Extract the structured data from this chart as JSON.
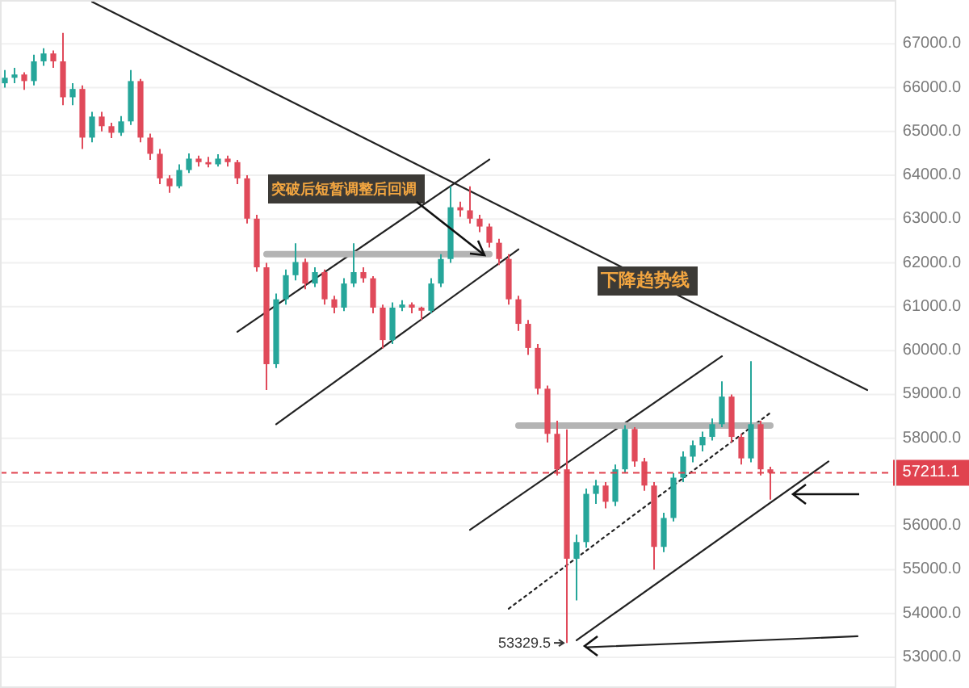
{
  "chart_data": {
    "type": "candlestick",
    "categories": [
      null,
      null,
      null,
      null,
      null,
      null,
      null,
      null,
      null,
      null,
      null,
      null,
      null,
      null,
      null,
      null,
      null,
      null,
      null,
      null,
      null,
      null,
      null,
      null,
      null,
      null,
      null,
      null,
      null,
      null,
      null,
      null,
      null,
      null,
      null,
      null,
      null,
      null,
      null,
      null,
      null,
      null,
      null,
      null,
      null,
      null,
      null,
      null,
      null,
      null,
      null,
      null,
      null,
      null,
      null,
      null,
      null,
      null,
      null,
      null,
      null,
      null,
      null,
      null,
      null,
      null,
      null,
      null,
      null,
      null,
      null,
      null,
      null,
      null,
      null,
      null,
      null,
      null,
      null,
      null,
      null,
      null,
      null,
      null,
      null,
      null,
      null,
      null,
      null,
      null,
      null
    ],
    "ohlc": [
      [
        66100,
        66400,
        66000,
        66225
      ],
      [
        66225,
        66450,
        66100,
        66300
      ],
      [
        66300,
        66350,
        65950,
        66150
      ],
      [
        66150,
        66750,
        66050,
        66600
      ],
      [
        66600,
        66900,
        66500,
        66780
      ],
      [
        66780,
        66850,
        66450,
        66600
      ],
      [
        66600,
        67250,
        65600,
        65780
      ],
      [
        65780,
        66100,
        65600,
        65970
      ],
      [
        65970,
        66050,
        64600,
        64860
      ],
      [
        64860,
        65450,
        64750,
        65340
      ],
      [
        65340,
        65450,
        65000,
        65120
      ],
      [
        65120,
        65200,
        64850,
        64970
      ],
      [
        64970,
        65350,
        64900,
        65230
      ],
      [
        65230,
        66400,
        65150,
        66150
      ],
      [
        66150,
        66200,
        64750,
        64860
      ],
      [
        64860,
        64950,
        64350,
        64490
      ],
      [
        64490,
        64600,
        63800,
        63930
      ],
      [
        63930,
        64000,
        63600,
        63750
      ],
      [
        63750,
        64250,
        63700,
        64120
      ],
      [
        64120,
        64500,
        64050,
        64380
      ],
      [
        64380,
        64450,
        64200,
        64300
      ],
      [
        64300,
        64420,
        64180,
        64250
      ],
      [
        64250,
        64480,
        64200,
        64380
      ],
      [
        64380,
        64450,
        64200,
        64300
      ],
      [
        64300,
        64350,
        63800,
        63930
      ],
      [
        63930,
        64000,
        62900,
        63010
      ],
      [
        63010,
        63100,
        61800,
        61900
      ],
      [
        61900,
        62000,
        59100,
        59690
      ],
      [
        59690,
        61300,
        59600,
        61170
      ],
      [
        61170,
        61850,
        61050,
        61720
      ],
      [
        61720,
        62450,
        61600,
        62020
      ],
      [
        62020,
        62100,
        61400,
        61530
      ],
      [
        61530,
        61900,
        61450,
        61790
      ],
      [
        61790,
        61850,
        61050,
        61170
      ],
      [
        61170,
        61250,
        60850,
        60980
      ],
      [
        60980,
        61650,
        60900,
        61530
      ],
      [
        61530,
        62450,
        61450,
        61790
      ],
      [
        61790,
        61900,
        61550,
        61650
      ],
      [
        61650,
        61700,
        60850,
        60980
      ],
      [
        60980,
        61050,
        60050,
        60240
      ],
      [
        60240,
        61100,
        60150,
        60980
      ],
      [
        60980,
        61150,
        60900,
        61050
      ],
      [
        61050,
        61100,
        60850,
        60980
      ],
      [
        60980,
        61000,
        60700,
        60910
      ],
      [
        60910,
        61650,
        60850,
        61530
      ],
      [
        61530,
        62200,
        61450,
        62090
      ],
      [
        62090,
        63750,
        62000,
        63270
      ],
      [
        63270,
        63400,
        63050,
        63200
      ],
      [
        63200,
        63750,
        62900,
        63010
      ],
      [
        63010,
        63100,
        62700,
        62830
      ],
      [
        62830,
        62900,
        62350,
        62460
      ],
      [
        62460,
        62550,
        61950,
        62090
      ],
      [
        62090,
        62200,
        61050,
        61170
      ],
      [
        61170,
        61250,
        60450,
        60610
      ],
      [
        60610,
        60700,
        59900,
        60060
      ],
      [
        60060,
        60150,
        59000,
        59130
      ],
      [
        59130,
        59200,
        57900,
        58100
      ],
      [
        58100,
        58400,
        57150,
        57290
      ],
      [
        57290,
        58200,
        53329.5,
        55250
      ],
      [
        55250,
        55800,
        54300,
        55630
      ],
      [
        55630,
        56850,
        55500,
        56730
      ],
      [
        56730,
        57050,
        56500,
        56920
      ],
      [
        56920,
        57000,
        56400,
        56550
      ],
      [
        56550,
        57400,
        56450,
        57290
      ],
      [
        57290,
        58300,
        57200,
        58210
      ],
      [
        58210,
        58250,
        57350,
        57470
      ],
      [
        57470,
        57550,
        56800,
        56920
      ],
      [
        56920,
        57000,
        55000,
        55520
      ],
      [
        55520,
        56300,
        55400,
        56180
      ],
      [
        56180,
        57200,
        56100,
        57100
      ],
      [
        57100,
        57700,
        57000,
        57580
      ],
      [
        57580,
        57950,
        57450,
        57840
      ],
      [
        57840,
        58150,
        57700,
        58030
      ],
      [
        58030,
        58450,
        57950,
        58320
      ],
      [
        58320,
        59300,
        58250,
        58950
      ],
      [
        58950,
        59000,
        57900,
        58030
      ],
      [
        58030,
        58100,
        57400,
        57540
      ],
      [
        57540,
        59760,
        57450,
        58320
      ],
      [
        58320,
        58400,
        57150,
        57290
      ],
      [
        57290,
        57350,
        56600,
        57211.1
      ],
      null,
      null,
      null,
      null,
      null,
      null,
      null,
      null,
      null,
      null,
      null
    ],
    "series": [
      {
        "type": "line",
        "color": "#222222",
        "values": [
          null,
          null,
          null,
          null,
          null,
          null,
          null,
          null,
          null,
          67960,
          null,
          null,
          null,
          null,
          null,
          null,
          null,
          null,
          null,
          null,
          null,
          null,
          null,
          null,
          null,
          null,
          null,
          null,
          null,
          null,
          null,
          null,
          null,
          null,
          null,
          null,
          null,
          null,
          null,
          null,
          null,
          null,
          null,
          null,
          null,
          null,
          null,
          null,
          null,
          null,
          null,
          null,
          null,
          null,
          null,
          null,
          null,
          null,
          null,
          null,
          null,
          null,
          null,
          null,
          null,
          null,
          null,
          null,
          null,
          null,
          null,
          null,
          null,
          null,
          null,
          null,
          null,
          null,
          null,
          null,
          null,
          null,
          null,
          null,
          null,
          null,
          null,
          null,
          null,
          59100,
          null
        ]
      },
      {
        "type": "line",
        "color": "#222222",
        "values": [
          null,
          null,
          null,
          null,
          null,
          null,
          null,
          null,
          null,
          null,
          null,
          null,
          null,
          null,
          null,
          null,
          null,
          null,
          null,
          null,
          null,
          null,
          null,
          null,
          60430,
          null,
          null,
          null,
          null,
          null,
          null,
          null,
          null,
          null,
          null,
          null,
          null,
          null,
          null,
          null,
          null,
          null,
          null,
          null,
          null,
          null,
          null,
          null,
          null,
          null,
          64360,
          null,
          null,
          null,
          null,
          null,
          null,
          null,
          null,
          null,
          null,
          null,
          null,
          null,
          null,
          null,
          null,
          null,
          null,
          null,
          null,
          null,
          null,
          null,
          null,
          null,
          null,
          null,
          null,
          null,
          null,
          null,
          null,
          null,
          null,
          null,
          null,
          null,
          null,
          null,
          null
        ]
      },
      {
        "type": "line",
        "color": "#222222",
        "values": [
          null,
          null,
          null,
          null,
          null,
          null,
          null,
          null,
          null,
          null,
          null,
          null,
          null,
          null,
          null,
          null,
          null,
          null,
          null,
          null,
          null,
          null,
          null,
          null,
          null,
          null,
          null,
          null,
          58320,
          null,
          null,
          null,
          null,
          null,
          null,
          null,
          null,
          null,
          null,
          null,
          null,
          null,
          null,
          null,
          null,
          null,
          null,
          null,
          null,
          null,
          null,
          null,
          null,
          62310,
          null,
          null,
          null,
          null,
          null,
          null,
          null,
          null,
          null,
          null,
          null,
          null,
          null,
          null,
          null,
          null,
          null,
          null,
          null,
          null,
          null,
          null,
          null,
          null,
          null,
          null,
          null,
          null,
          null,
          null,
          null,
          null,
          null,
          null,
          null,
          null,
          null
        ]
      },
      {
        "type": "line",
        "color": "#222222",
        "values": [
          null,
          null,
          null,
          null,
          null,
          null,
          null,
          null,
          null,
          null,
          null,
          null,
          null,
          null,
          null,
          null,
          null,
          null,
          null,
          null,
          null,
          null,
          null,
          null,
          null,
          null,
          null,
          null,
          null,
          null,
          null,
          null,
          null,
          null,
          null,
          null,
          null,
          null,
          null,
          null,
          null,
          null,
          null,
          null,
          null,
          null,
          null,
          null,
          55910,
          null,
          null,
          null,
          null,
          null,
          null,
          null,
          null,
          null,
          null,
          null,
          null,
          null,
          null,
          null,
          null,
          null,
          null,
          null,
          null,
          null,
          null,
          null,
          null,
          null,
          59870,
          null,
          null,
          null,
          null,
          null,
          null,
          null,
          null,
          null,
          null,
          null,
          null,
          null,
          null,
          null,
          null
        ]
      },
      {
        "type": "line",
        "color": "#222222",
        "values": [
          null,
          null,
          null,
          null,
          null,
          null,
          null,
          null,
          null,
          null,
          null,
          null,
          null,
          null,
          null,
          null,
          null,
          null,
          null,
          null,
          null,
          null,
          null,
          null,
          null,
          null,
          null,
          null,
          null,
          null,
          null,
          null,
          null,
          null,
          null,
          null,
          null,
          null,
          null,
          null,
          null,
          null,
          null,
          null,
          null,
          null,
          null,
          null,
          null,
          null,
          null,
          null,
          null,
          null,
          null,
          null,
          null,
          null,
          null,
          53390,
          null,
          null,
          null,
          null,
          null,
          null,
          null,
          null,
          null,
          null,
          null,
          null,
          null,
          null,
          null,
          null,
          null,
          null,
          null,
          null,
          null,
          null,
          null,
          null,
          null,
          57470,
          null,
          null,
          null,
          null,
          null
        ]
      },
      {
        "type": "line",
        "color": "#222222",
        "line_style": "dotted",
        "values": [
          null,
          null,
          null,
          null,
          null,
          null,
          null,
          null,
          null,
          null,
          null,
          null,
          null,
          null,
          null,
          null,
          null,
          null,
          null,
          null,
          null,
          null,
          null,
          null,
          null,
          null,
          null,
          null,
          null,
          null,
          null,
          null,
          null,
          null,
          null,
          null,
          null,
          null,
          null,
          null,
          null,
          null,
          null,
          null,
          null,
          null,
          null,
          null,
          null,
          null,
          null,
          null,
          54110,
          null,
          null,
          null,
          null,
          null,
          null,
          null,
          null,
          null,
          null,
          null,
          null,
          null,
          null,
          null,
          null,
          null,
          null,
          null,
          null,
          null,
          null,
          null,
          null,
          null,
          null,
          58580,
          null,
          null,
          null,
          null,
          null,
          null,
          null,
          null,
          null,
          null,
          null
        ]
      },
      {
        "type": "line",
        "color": "#222222",
        "values": [
          null,
          null,
          null,
          null,
          null,
          null,
          null,
          null,
          null,
          null,
          null,
          null,
          null,
          null,
          null,
          null,
          null,
          null,
          null,
          null,
          null,
          null,
          null,
          null,
          null,
          null,
          null,
          null,
          null,
          null,
          null,
          null,
          null,
          null,
          null,
          null,
          null,
          null,
          null,
          null,
          null,
          null,
          null,
          null,
          null,
          null,
          null,
          null,
          null,
          null,
          null,
          null,
          null,
          null,
          null,
          null,
          null,
          null,
          null,
          null,
          53230,
          null,
          null,
          null,
          null,
          null,
          null,
          null,
          null,
          null,
          null,
          null,
          null,
          null,
          null,
          null,
          null,
          null,
          null,
          null,
          null,
          null,
          null,
          null,
          null,
          null,
          null,
          null,
          53480,
          null,
          null
        ]
      },
      {
        "type": "line",
        "color": "#b4b4b4",
        "values": [
          null,
          null,
          null,
          null,
          null,
          null,
          null,
          null,
          null,
          null,
          null,
          null,
          null,
          null,
          null,
          null,
          null,
          null,
          null,
          null,
          null,
          null,
          null,
          null,
          null,
          null,
          null,
          62200,
          null,
          null,
          null,
          null,
          null,
          null,
          null,
          null,
          null,
          null,
          null,
          null,
          null,
          null,
          null,
          null,
          null,
          null,
          null,
          null,
          null,
          null,
          62200,
          null,
          null,
          null,
          null,
          null,
          null,
          null,
          null,
          null,
          null,
          null,
          null,
          null,
          null,
          null,
          null,
          null,
          null,
          null,
          null,
          null,
          null,
          null,
          null,
          null,
          null,
          null,
          null,
          null,
          null,
          null,
          null,
          null,
          null,
          null,
          null,
          null,
          null,
          null,
          null
        ]
      },
      {
        "type": "line",
        "color": "#b4b4b4",
        "values": [
          null,
          null,
          null,
          null,
          null,
          null,
          null,
          null,
          null,
          null,
          null,
          null,
          null,
          null,
          null,
          null,
          null,
          null,
          null,
          null,
          null,
          null,
          null,
          null,
          null,
          null,
          null,
          null,
          null,
          null,
          null,
          null,
          null,
          null,
          null,
          null,
          null,
          null,
          null,
          null,
          null,
          null,
          null,
          null,
          null,
          null,
          null,
          null,
          null,
          null,
          null,
          null,
          null,
          58290,
          null,
          null,
          null,
          null,
          null,
          null,
          null,
          null,
          null,
          null,
          null,
          null,
          null,
          null,
          null,
          null,
          null,
          null,
          null,
          null,
          null,
          null,
          null,
          null,
          null,
          58290,
          null,
          null,
          null,
          null,
          null,
          null,
          null,
          null,
          null,
          null,
          null
        ]
      }
    ],
    "ylim": [
      52300,
      68000
    ],
    "yticks": [
      {
        "value": 53000,
        "label": "53000.0"
      },
      {
        "value": 54000,
        "label": "54000.0"
      },
      {
        "value": 55000,
        "label": "55000.0"
      },
      {
        "value": 56000,
        "label": "56000.0"
      },
      {
        "value": 57000,
        "label": null
      },
      {
        "value": 58000,
        "label": "58000.0"
      },
      {
        "value": 59000,
        "label": "59000.0"
      },
      {
        "value": 60000,
        "label": "60000.0"
      },
      {
        "value": 61000,
        "label": "61000.0"
      },
      {
        "value": 62000,
        "label": "62000.0"
      },
      {
        "value": 63000,
        "label": "63000.0"
      },
      {
        "value": 64000,
        "label": "64000.0"
      },
      {
        "value": 65000,
        "label": "65000.0"
      },
      {
        "value": 66000,
        "label": "66000.0"
      },
      {
        "value": 67000,
        "label": "67000.0"
      }
    ],
    "tick_labels": "y",
    "grid": "y",
    "ref_lines": [
      {
        "axis": "y",
        "value": 57211.1,
        "label": "57211.1",
        "color": "#e0434f",
        "line_style": "dashed"
      }
    ],
    "annotations": [
      "突破后短暂调整后回调",
      "下降趋势线",
      "53329.5"
    ]
  }
}
